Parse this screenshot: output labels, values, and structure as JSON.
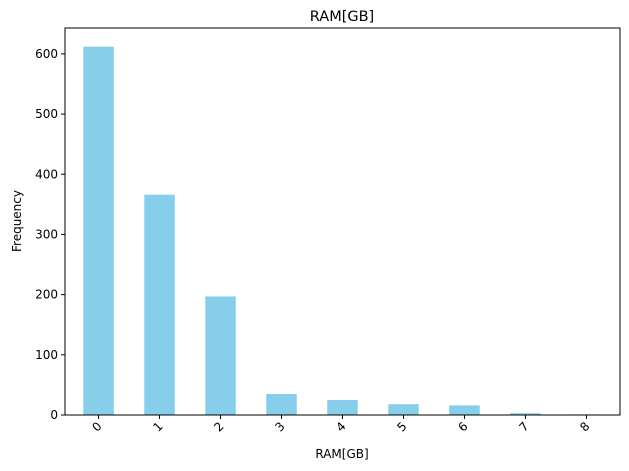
{
  "chart_data": {
    "type": "bar",
    "title": "RAM[GB]",
    "xlabel": "RAM[GB]",
    "ylabel": "Frequency",
    "categories": [
      "0",
      "1",
      "2",
      "3",
      "4",
      "5",
      "6",
      "7",
      "8"
    ],
    "values": [
      612,
      366,
      197,
      35,
      25,
      18,
      16,
      3,
      1
    ],
    "ylim": [
      0,
      643
    ],
    "yticks": [
      0,
      100,
      200,
      300,
      400,
      500,
      600
    ],
    "bar_color": "#87ceeb",
    "grid": false,
    "xtick_rotation": -45
  }
}
